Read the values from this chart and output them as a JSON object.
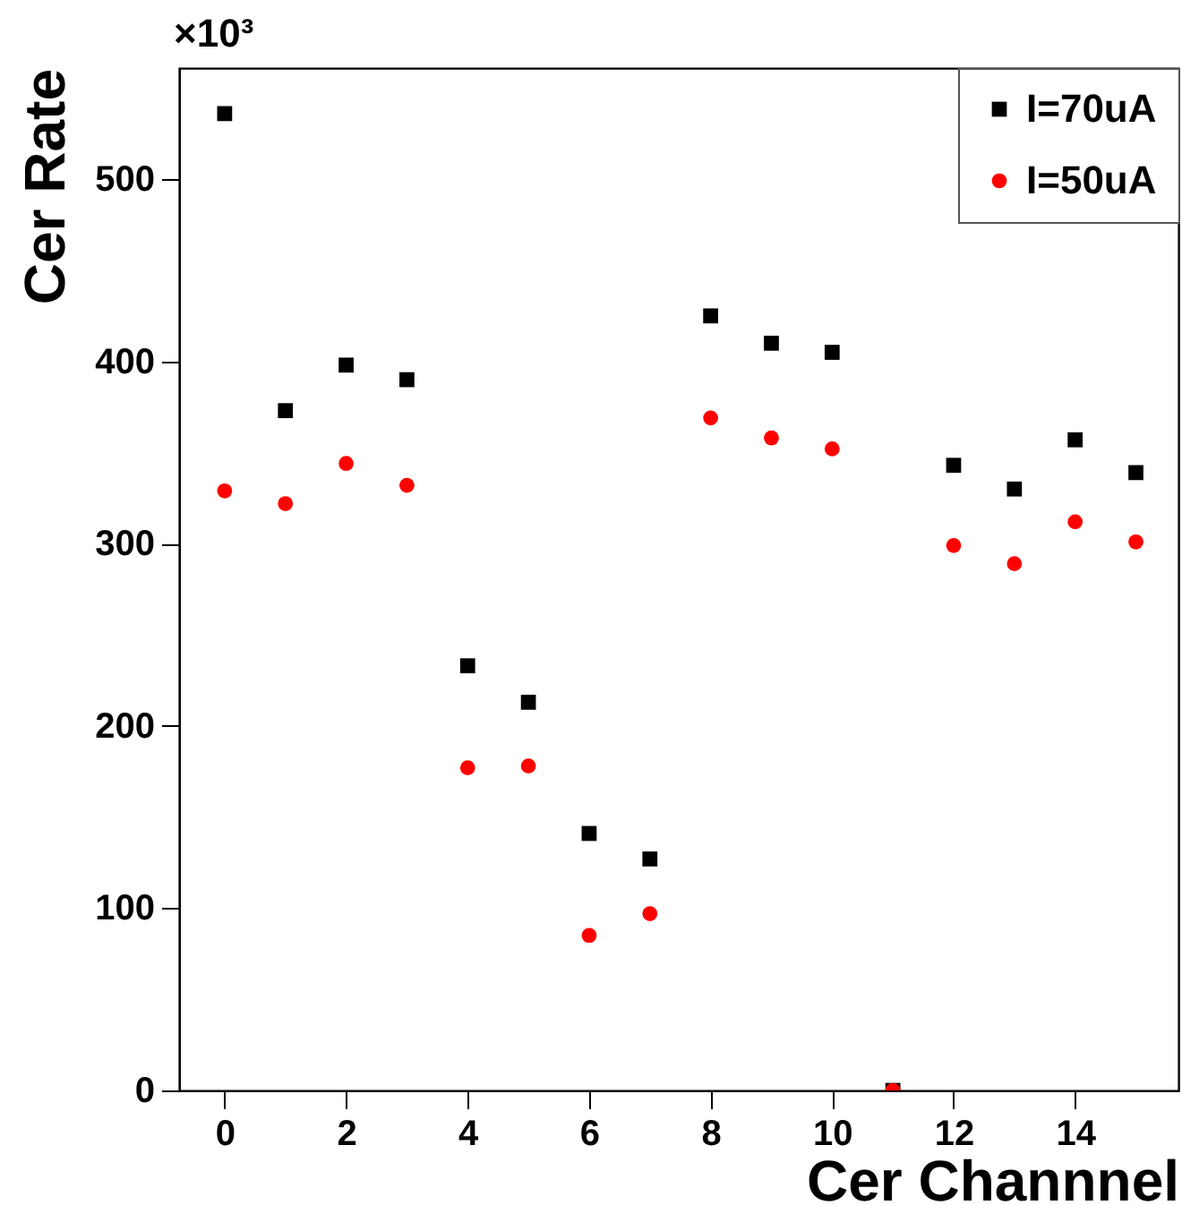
{
  "chart_data": {
    "type": "scatter",
    "xlabel": "Cer Channnel",
    "ylabel": "Cer Rate",
    "annotations": [
      "×10³"
    ],
    "x": [
      0,
      1,
      2,
      3,
      4,
      5,
      6,
      7,
      8,
      9,
      10,
      11,
      12,
      13,
      14,
      15
    ],
    "xlim": [
      -0.75,
      15.7
    ],
    "xticks": [
      0,
      2,
      4,
      6,
      8,
      10,
      12,
      14
    ],
    "ylim": [
      0,
      561
    ],
    "yticks": [
      0,
      100,
      200,
      300,
      400,
      500
    ],
    "grid": false,
    "legend": "top right",
    "series": [
      {
        "name": "I=70uA",
        "color": "#000000",
        "marker": "square",
        "values": [
          536,
          373,
          398,
          390,
          233,
          213,
          141,
          127,
          425,
          410,
          405,
          0,
          343,
          330,
          357,
          339
        ]
      },
      {
        "name": "I=50uA",
        "color": "#ff0000",
        "marker": "circle",
        "values": [
          329,
          322,
          344,
          332,
          177,
          178,
          85,
          97,
          369,
          358,
          352,
          0,
          299,
          289,
          312,
          301
        ]
      }
    ]
  }
}
